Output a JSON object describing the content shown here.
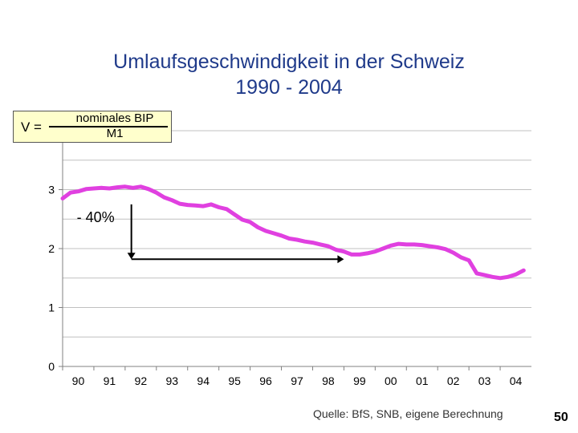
{
  "chart_data": {
    "type": "line",
    "title": "Umlaufsgeschwindigkeit in der Schweiz",
    "subtitle": "1990 - 2004",
    "x_tick_labels": [
      "90",
      "91",
      "92",
      "93",
      "94",
      "95",
      "96",
      "97",
      "98",
      "99",
      "00",
      "01",
      "02",
      "03",
      "04"
    ],
    "y_ticks": [
      0,
      1,
      2,
      3
    ],
    "ylim": [
      0,
      4
    ],
    "xlim": [
      1990,
      2005
    ],
    "grid": true,
    "series": [
      {
        "name": "Umlaufsgeschwindigkeit",
        "color": "#e040e0",
        "x": [
          1990.0,
          1990.25,
          1990.5,
          1990.75,
          1991.0,
          1991.25,
          1991.5,
          1991.75,
          1992.0,
          1992.25,
          1992.5,
          1992.75,
          1993.0,
          1993.25,
          1993.5,
          1993.75,
          1994.0,
          1994.25,
          1994.5,
          1994.75,
          1995.0,
          1995.25,
          1995.5,
          1995.75,
          1996.0,
          1996.25,
          1996.5,
          1996.75,
          1997.0,
          1997.25,
          1997.5,
          1997.75,
          1998.0,
          1998.25,
          1998.5,
          1998.75,
          1999.0,
          1999.25,
          1999.5,
          1999.75,
          2000.0,
          2000.25,
          2000.5,
          2000.75,
          2001.0,
          2001.25,
          2001.5,
          2001.75,
          2002.0,
          2002.25,
          2002.5,
          2002.75,
          2003.0,
          2003.25,
          2003.5,
          2003.75,
          2004.0,
          2004.25,
          2004.5,
          2004.75
        ],
        "values": [
          2.85,
          2.95,
          2.97,
          3.01,
          3.02,
          3.03,
          3.02,
          3.04,
          3.05,
          3.03,
          3.05,
          3.01,
          2.95,
          2.87,
          2.82,
          2.76,
          2.74,
          2.73,
          2.72,
          2.75,
          2.7,
          2.67,
          2.58,
          2.49,
          2.45,
          2.36,
          2.3,
          2.26,
          2.22,
          2.17,
          2.15,
          2.12,
          2.1,
          2.07,
          2.04,
          1.98,
          1.95,
          1.9,
          1.9,
          1.92,
          1.95,
          2.0,
          2.05,
          2.08,
          2.07,
          2.07,
          2.06,
          2.04,
          2.02,
          1.99,
          1.93,
          1.85,
          1.8,
          1.58,
          1.55,
          1.52,
          1.5,
          1.52,
          1.56,
          1.63
        ]
      }
    ],
    "annotation": {
      "text": "- 40%",
      "start_x": 1992.2,
      "end_x": 1999.0,
      "start_y": 2.75,
      "end_y": 1.82
    }
  },
  "formula": {
    "lhs": "V =",
    "numerator": "nominales BIP",
    "denominator": "M1",
    "box_color": "#ffffcc"
  },
  "source": "Quelle: BfS, SNB, eigene Berechnung",
  "page_number": "50"
}
